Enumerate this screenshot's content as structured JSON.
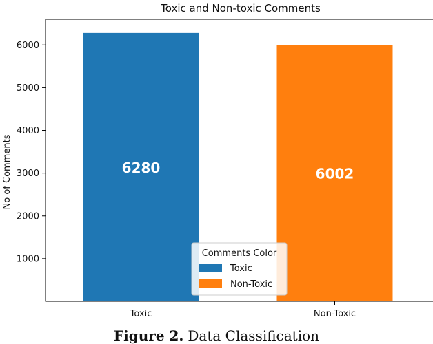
{
  "chart_data": {
    "type": "bar",
    "title": "Toxic and Non-toxic Comments",
    "xlabel": "",
    "ylabel": "No of Comments",
    "categories": [
      "Toxic",
      "Non-Toxic"
    ],
    "values": [
      6280,
      6002
    ],
    "data_labels": [
      "6280",
      "6002"
    ],
    "colors": [
      "#1f77b4",
      "#ff7f0e"
    ],
    "label_color": "#ffffff",
    "ylim": [
      0,
      6600
    ],
    "yticks": [
      1000,
      2000,
      3000,
      4000,
      5000,
      6000
    ],
    "grid": false,
    "legend": {
      "title": "Comments Color",
      "placement": "lower-center",
      "entries": [
        "Toxic",
        "Non-Toxic"
      ]
    }
  },
  "caption": {
    "label": "Figure 2.",
    "text": "Data Classification"
  }
}
